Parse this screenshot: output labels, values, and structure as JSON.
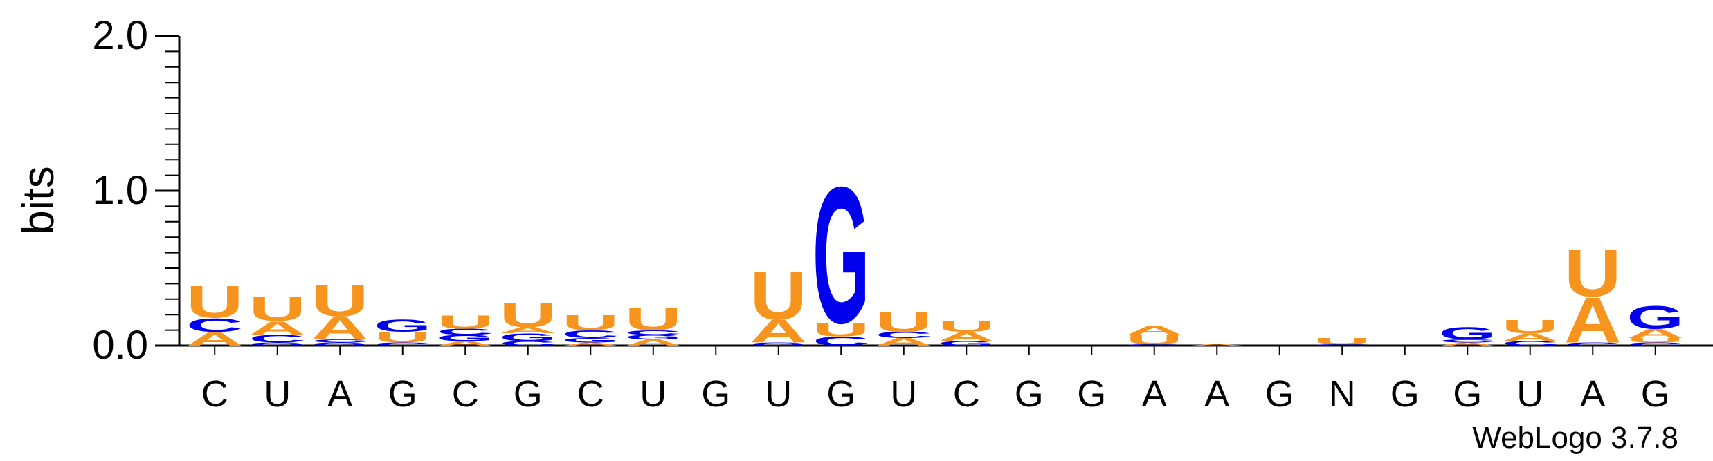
{
  "chart_data": {
    "type": "sequence-logo",
    "ylabel": "bits",
    "ylim": [
      0,
      2.0
    ],
    "y_ticks": [
      {
        "value": 0.0,
        "label": "0.0"
      },
      {
        "value": 1.0,
        "label": "1.0"
      },
      {
        "value": 2.0,
        "label": "2.0"
      }
    ],
    "colors": {
      "A": "#f7941d",
      "U": "#f7941d",
      "G": "#0000ee",
      "C": "#0000ee",
      "axis": "#000000"
    },
    "positions": [
      {
        "label": "C",
        "stack": [
          {
            "letter": "A",
            "bits": 0.09
          },
          {
            "letter": "C",
            "bits": 0.09
          },
          {
            "letter": "U",
            "bits": 0.21
          }
        ]
      },
      {
        "label": "U",
        "stack": [
          {
            "letter": "G",
            "bits": 0.02
          },
          {
            "letter": "C",
            "bits": 0.05
          },
          {
            "letter": "A",
            "bits": 0.09
          },
          {
            "letter": "U",
            "bits": 0.16
          }
        ]
      },
      {
        "label": "A",
        "stack": [
          {
            "letter": "G",
            "bits": 0.02
          },
          {
            "letter": "C",
            "bits": 0.02
          },
          {
            "letter": "A",
            "bits": 0.15
          },
          {
            "letter": "U",
            "bits": 0.21
          }
        ]
      },
      {
        "label": "G",
        "stack": [
          {
            "letter": "C",
            "bits": 0.02
          },
          {
            "letter": "U",
            "bits": 0.07
          },
          {
            "letter": "G",
            "bits": 0.08
          }
        ]
      },
      {
        "label": "C",
        "stack": [
          {
            "letter": "A",
            "bits": 0.03
          },
          {
            "letter": "G",
            "bits": 0.04
          },
          {
            "letter": "C",
            "bits": 0.04
          },
          {
            "letter": "U",
            "bits": 0.09
          }
        ]
      },
      {
        "label": "G",
        "stack": [
          {
            "letter": "C",
            "bits": 0.03
          },
          {
            "letter": "G",
            "bits": 0.05
          },
          {
            "letter": "A",
            "bits": 0.04
          },
          {
            "letter": "U",
            "bits": 0.16
          }
        ]
      },
      {
        "label": "C",
        "stack": [
          {
            "letter": "A",
            "bits": 0.02
          },
          {
            "letter": "G",
            "bits": 0.03
          },
          {
            "letter": "C",
            "bits": 0.05
          },
          {
            "letter": "U",
            "bits": 0.1
          }
        ]
      },
      {
        "label": "U",
        "stack": [
          {
            "letter": "A",
            "bits": 0.04
          },
          {
            "letter": "G",
            "bits": 0.03
          },
          {
            "letter": "C",
            "bits": 0.03
          },
          {
            "letter": "U",
            "bits": 0.15
          }
        ]
      },
      {
        "label": "G",
        "stack": []
      },
      {
        "label": "U",
        "stack": [
          {
            "letter": "G",
            "bits": 0.02
          },
          {
            "letter": "A",
            "bits": 0.15
          },
          {
            "letter": "U",
            "bits": 0.32
          }
        ]
      },
      {
        "label": "G",
        "stack": [
          {
            "letter": "C",
            "bits": 0.06
          },
          {
            "letter": "U",
            "bits": 0.09
          },
          {
            "letter": "G",
            "bits": 0.9
          }
        ]
      },
      {
        "label": "U",
        "stack": [
          {
            "letter": "A",
            "bits": 0.05
          },
          {
            "letter": "C",
            "bits": 0.04
          },
          {
            "letter": "U",
            "bits": 0.13
          }
        ]
      },
      {
        "label": "C",
        "stack": [
          {
            "letter": "G",
            "bits": 0.03
          },
          {
            "letter": "A",
            "bits": 0.06
          },
          {
            "letter": "U",
            "bits": 0.07
          }
        ]
      },
      {
        "label": "G",
        "stack": []
      },
      {
        "label": "G",
        "stack": []
      },
      {
        "label": "A",
        "stack": [
          {
            "letter": "G",
            "bits": 0.01
          },
          {
            "letter": "U",
            "bits": 0.06
          },
          {
            "letter": "A",
            "bits": 0.06
          }
        ]
      },
      {
        "label": "A",
        "stack": [
          {
            "letter": "A",
            "bits": 0.01
          }
        ]
      },
      {
        "label": "G",
        "stack": []
      },
      {
        "label": "N",
        "stack": [
          {
            "letter": "C",
            "bits": 0.01
          },
          {
            "letter": "U",
            "bits": 0.04
          }
        ]
      },
      {
        "label": "G",
        "stack": []
      },
      {
        "label": "G",
        "stack": [
          {
            "letter": "A",
            "bits": 0.02
          },
          {
            "letter": "C",
            "bits": 0.02
          },
          {
            "letter": "G",
            "bits": 0.08
          }
        ]
      },
      {
        "label": "U",
        "stack": [
          {
            "letter": "C",
            "bits": 0.03
          },
          {
            "letter": "A",
            "bits": 0.05
          },
          {
            "letter": "U",
            "bits": 0.09
          }
        ]
      },
      {
        "label": "A",
        "stack": [
          {
            "letter": "C",
            "bits": 0.02
          },
          {
            "letter": "A",
            "bits": 0.3
          },
          {
            "letter": "U",
            "bits": 0.31
          }
        ]
      },
      {
        "label": "G",
        "stack": [
          {
            "letter": "C",
            "bits": 0.02
          },
          {
            "letter": "U",
            "bits": 0.03
          },
          {
            "letter": "A",
            "bits": 0.06
          },
          {
            "letter": "G",
            "bits": 0.15
          }
        ]
      }
    ],
    "credit": "WebLogo 3.7.8"
  }
}
